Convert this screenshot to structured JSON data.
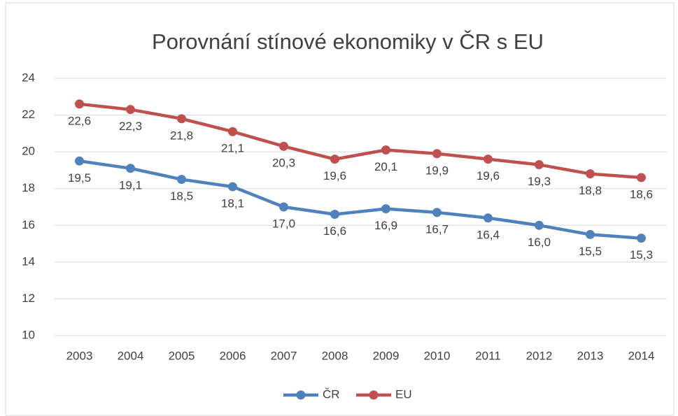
{
  "chart_data": {
    "type": "line",
    "title": "Porovnání stínové ekonomiky v ČR s EU",
    "categories": [
      "2003",
      "2004",
      "2005",
      "2006",
      "2007",
      "2008",
      "2009",
      "2010",
      "2011",
      "2012",
      "2013",
      "2014"
    ],
    "series": [
      {
        "name": "ČR",
        "color": "#4f81bd",
        "values": [
          19.5,
          19.1,
          18.5,
          18.1,
          17.0,
          16.6,
          16.9,
          16.7,
          16.4,
          16.0,
          15.5,
          15.3
        ],
        "value_labels": [
          "19,5",
          "19,1",
          "18,5",
          "18,1",
          "17,0",
          "16,6",
          "16,9",
          "16,7",
          "16,4",
          "16,0",
          "15,5",
          "15,3"
        ]
      },
      {
        "name": "EU",
        "color": "#c0504d",
        "values": [
          22.6,
          22.3,
          21.8,
          21.1,
          20.3,
          19.6,
          20.1,
          19.9,
          19.6,
          19.3,
          18.8,
          18.6
        ],
        "value_labels": [
          "22,6",
          "22,3",
          "21,8",
          "21,1",
          "20,3",
          "19,6",
          "20,1",
          "19,9",
          "19,6",
          "19,3",
          "18,8",
          "18,6"
        ]
      }
    ],
    "ylim": [
      10,
      24
    ],
    "yticks": [
      10,
      12,
      14,
      16,
      18,
      20,
      22,
      24
    ],
    "grid": true,
    "legend": "bottom"
  }
}
